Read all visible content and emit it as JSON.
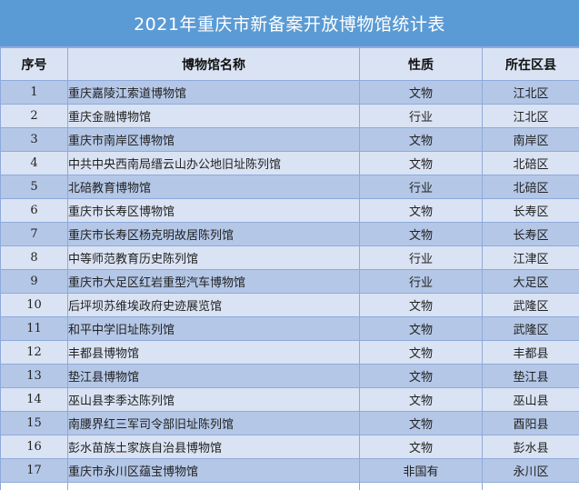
{
  "title": "2021年重庆市新备案开放博物馆统计表",
  "colors": {
    "title_bg": "#5b9bd5",
    "title_text": "#ffffff",
    "header_bg": "#dae3f3",
    "row_dark": "#b4c7e7",
    "row_light": "#dae3f3",
    "border": "#8eaadb"
  },
  "table": {
    "headers": {
      "no": "序号",
      "name": "博物馆名称",
      "type": "性质",
      "district": "所在区县"
    },
    "rows": [
      {
        "no": "1",
        "name": "重庆嘉陵江索道博物馆",
        "type": "文物",
        "district": "江北区"
      },
      {
        "no": "2",
        "name": "重庆金融博物馆",
        "type": "行业",
        "district": "江北区"
      },
      {
        "no": "3",
        "name": "重庆市南岸区博物馆",
        "type": "文物",
        "district": "南岸区"
      },
      {
        "no": "4",
        "name": "中共中央西南局缙云山办公地旧址陈列馆",
        "type": "文物",
        "district": "北碚区"
      },
      {
        "no": "5",
        "name": "北碚教育博物馆",
        "type": "行业",
        "district": "北碚区"
      },
      {
        "no": "6",
        "name": "重庆市长寿区博物馆",
        "type": "文物",
        "district": "长寿区"
      },
      {
        "no": "7",
        "name": "重庆市长寿区杨克明故居陈列馆",
        "type": "文物",
        "district": "长寿区"
      },
      {
        "no": "8",
        "name": "中等师范教育历史陈列馆",
        "type": "行业",
        "district": "江津区"
      },
      {
        "no": "9",
        "name": "重庆市大足区红岩重型汽车博物馆",
        "type": "行业",
        "district": "大足区"
      },
      {
        "no": "10",
        "name": "后坪坝苏维埃政府史迹展览馆",
        "type": "文物",
        "district": "武隆区"
      },
      {
        "no": "11",
        "name": "和平中学旧址陈列馆",
        "type": "文物",
        "district": "武隆区"
      },
      {
        "no": "12",
        "name": "丰都县博物馆",
        "type": "文物",
        "district": "丰都县"
      },
      {
        "no": "13",
        "name": "垫江县博物馆",
        "type": "文物",
        "district": "垫江县"
      },
      {
        "no": "14",
        "name": "巫山县李季达陈列馆",
        "type": "文物",
        "district": "巫山县"
      },
      {
        "no": "15",
        "name": "南腰界红三军司令部旧址陈列馆",
        "type": "文物",
        "district": "酉阳县"
      },
      {
        "no": "16",
        "name": "彭水苗族土家族自治县博物馆",
        "type": "文物",
        "district": "彭水县"
      },
      {
        "no": "17",
        "name": "重庆市永川区蕴宝博物馆",
        "type": "非国有",
        "district": "永川区"
      }
    ]
  }
}
